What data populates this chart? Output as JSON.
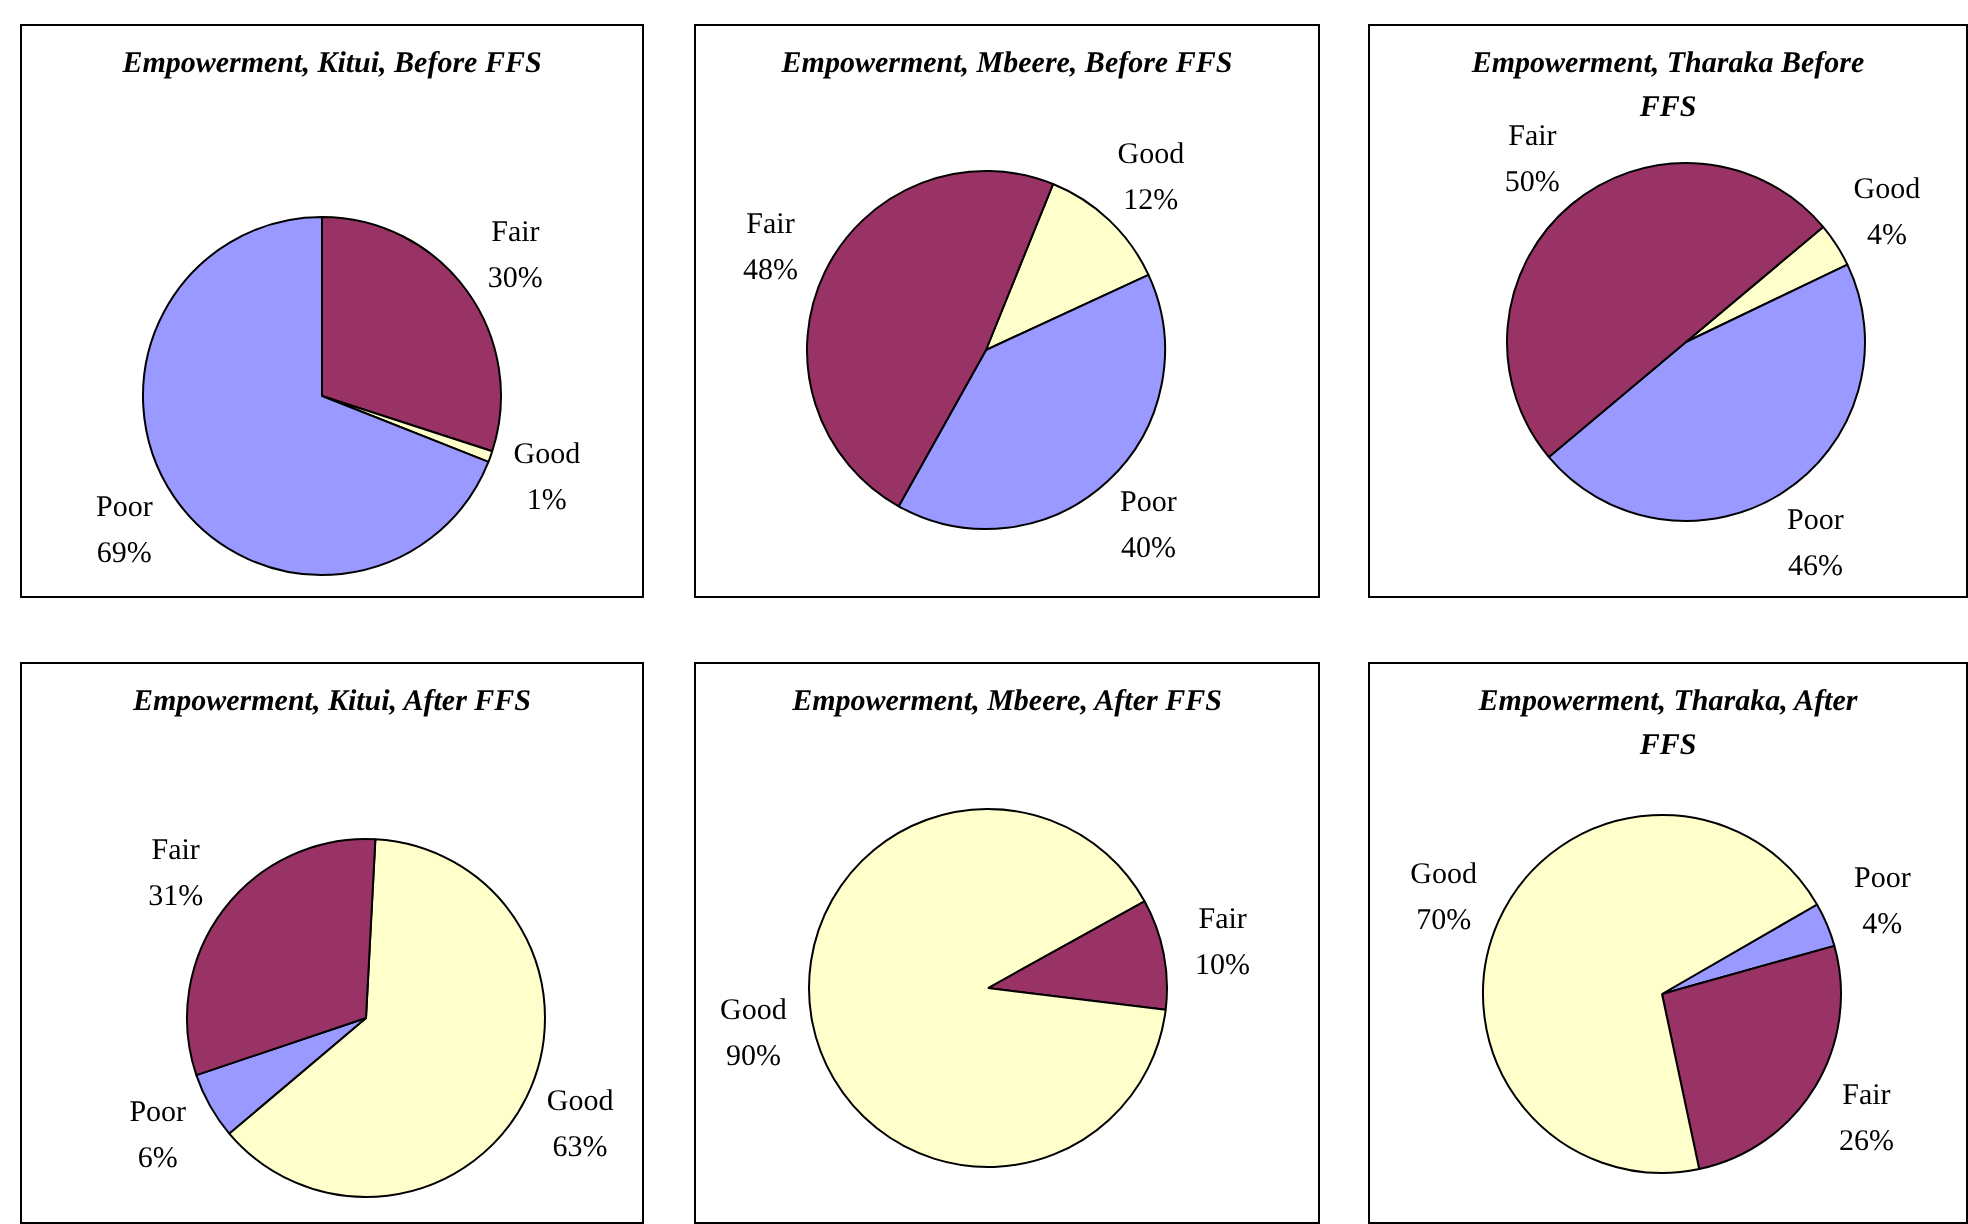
{
  "chart_data": [
    {
      "type": "pie",
      "title": "Empowerment, Kitui, Before FFS",
      "categories": [
        "Fair",
        "Good",
        "Poor"
      ],
      "values": [
        30,
        1,
        69
      ],
      "colors": [
        "#993366",
        "#ffffcc",
        "#9999ff"
      ],
      "value_labels": [
        "30%",
        "1%",
        "69%"
      ]
    },
    {
      "type": "pie",
      "title": "Empowerment, Mbeere, Before FFS",
      "categories": [
        "Good",
        "Poor",
        "Fair"
      ],
      "values": [
        12,
        40,
        48
      ],
      "colors": [
        "#ffffcc",
        "#9999ff",
        "#993366"
      ],
      "value_labels": [
        "12%",
        "40%",
        "48%"
      ]
    },
    {
      "type": "pie",
      "title": "Empowerment, Tharaka Before FFS",
      "categories": [
        "Good",
        "Poor",
        "Fair"
      ],
      "values": [
        4,
        46,
        50
      ],
      "colors": [
        "#ffffcc",
        "#9999ff",
        "#993366"
      ],
      "value_labels": [
        "4%",
        "46%",
        "50%"
      ]
    },
    {
      "type": "pie",
      "title": "Empowerment, Kitui, After FFS",
      "categories": [
        "Good",
        "Poor",
        "Fair"
      ],
      "values": [
        63,
        6,
        31
      ],
      "colors": [
        "#ffffcc",
        "#9999ff",
        "#993366"
      ],
      "value_labels": [
        "63%",
        "6%",
        "31%"
      ]
    },
    {
      "type": "pie",
      "title": "Empowerment, Mbeere, After FFS",
      "categories": [
        "Fair",
        "Good"
      ],
      "values": [
        10,
        90
      ],
      "colors": [
        "#993366",
        "#ffffcc"
      ],
      "value_labels": [
        "10%",
        "90%"
      ]
    },
    {
      "type": "pie",
      "title": "Empowerment, Tharaka, After FFS",
      "categories": [
        "Poor",
        "Fair",
        "Good"
      ],
      "values": [
        4,
        26,
        70
      ],
      "colors": [
        "#9999ff",
        "#993366",
        "#ffffcc"
      ],
      "value_labels": [
        "4%",
        "26%",
        "70%"
      ]
    }
  ]
}
